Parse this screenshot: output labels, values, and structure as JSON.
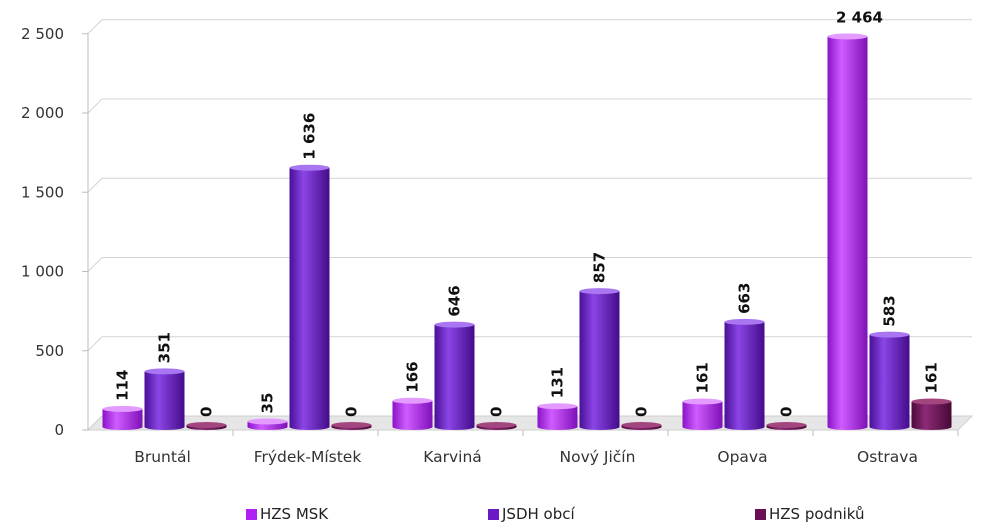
{
  "chart_data": {
    "type": "bar",
    "categories": [
      "Bruntál",
      "Frýdek-Místek",
      "Karviná",
      "Nový Jičín",
      "Opava",
      "Ostrava"
    ],
    "series": [
      {
        "name": "HZS MSK",
        "values": [
          114,
          35,
          166,
          131,
          161,
          2464
        ],
        "labels": [
          "114",
          "35",
          "166",
          "131",
          "161",
          "2 464"
        ],
        "color": "#b21ff2"
      },
      {
        "name": "JSDH obcí",
        "values": [
          351,
          1636,
          646,
          857,
          663,
          583
        ],
        "labels": [
          "351",
          "1 636",
          "646",
          "857",
          "663",
          "583"
        ],
        "color": "#6a17c4"
      },
      {
        "name": "HZS podniků",
        "values": [
          0,
          0,
          0,
          0,
          0,
          161
        ],
        "labels": [
          "0",
          "0",
          "0",
          "0",
          "0",
          "161"
        ],
        "color": "#6b0f55"
      }
    ],
    "yticks": [
      "0",
      "500",
      "1 000",
      "1 500",
      "2 000",
      "2 500"
    ],
    "ylim": [
      0,
      2500
    ],
    "grid": true,
    "legend_position": "bottom",
    "style": "3d-cylinder"
  }
}
